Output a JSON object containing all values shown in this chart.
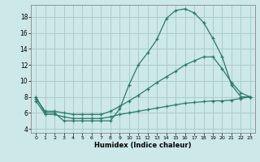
{
  "xlabel": "Humidex (Indice chaleur)",
  "bg_color": "#cce8e8",
  "grid_color": "#aacccc",
  "line_color": "#2a7a6a",
  "xlim": [
    -0.5,
    23.5
  ],
  "ylim": [
    3.5,
    19.5
  ],
  "xticks": [
    0,
    1,
    2,
    3,
    4,
    5,
    6,
    7,
    8,
    9,
    10,
    11,
    12,
    13,
    14,
    15,
    16,
    17,
    18,
    19,
    20,
    21,
    22,
    23
  ],
  "yticks": [
    4,
    6,
    8,
    10,
    12,
    14,
    16,
    18
  ],
  "line1_x": [
    0,
    1,
    2,
    3,
    4,
    5,
    6,
    7,
    8,
    9,
    10,
    11,
    12,
    13,
    14,
    15,
    16,
    17,
    18,
    19,
    20,
    21,
    22,
    23
  ],
  "line1_y": [
    8.0,
    6.0,
    6.0,
    5.0,
    5.0,
    5.0,
    5.0,
    5.0,
    5.0,
    6.5,
    9.5,
    12.0,
    13.5,
    15.2,
    17.8,
    18.8,
    19.0,
    18.5,
    17.3,
    15.3,
    13.0,
    9.5,
    8.0,
    8.0
  ],
  "line2_x": [
    0,
    1,
    2,
    3,
    4,
    5,
    6,
    7,
    8,
    9,
    10,
    11,
    12,
    13,
    14,
    15,
    16,
    17,
    18,
    19,
    20,
    21,
    22,
    23
  ],
  "line2_y": [
    7.8,
    6.2,
    6.2,
    6.0,
    5.8,
    5.8,
    5.8,
    5.8,
    6.2,
    6.8,
    7.5,
    8.2,
    9.0,
    9.8,
    10.5,
    11.2,
    12.0,
    12.5,
    13.0,
    13.0,
    11.5,
    9.8,
    8.5,
    8.0
  ],
  "line3_x": [
    0,
    1,
    2,
    3,
    4,
    5,
    6,
    7,
    8,
    9,
    10,
    11,
    12,
    13,
    14,
    15,
    16,
    17,
    18,
    19,
    20,
    21,
    22,
    23
  ],
  "line3_y": [
    7.5,
    5.8,
    5.8,
    5.5,
    5.3,
    5.3,
    5.3,
    5.3,
    5.5,
    5.8,
    6.0,
    6.2,
    6.4,
    6.6,
    6.8,
    7.0,
    7.2,
    7.3,
    7.4,
    7.5,
    7.5,
    7.6,
    7.8,
    8.0
  ]
}
